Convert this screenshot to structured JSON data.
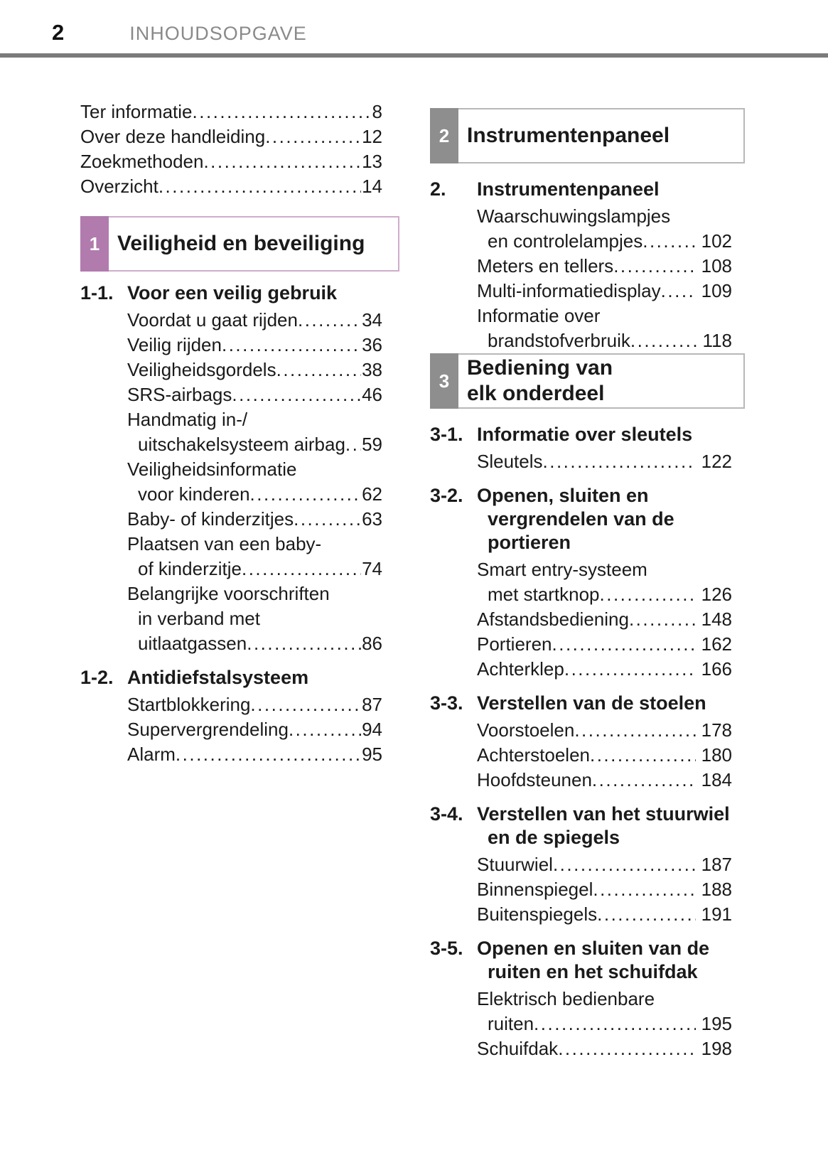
{
  "header": {
    "page_number": "2",
    "title": "INHOUDSOPGAVE"
  },
  "colors": {
    "chapter1_accent": "#b17bad",
    "chapter1_border": "#cfadcb",
    "chapter_gray_accent": "#8e8e8e",
    "chapter_gray_border": "#b8b8b8",
    "header_text_gray": "#8a8a8a",
    "divider_gray": "#7b7b7b"
  },
  "left_column": {
    "blocks": [
      {
        "type": "list",
        "items": [
          {
            "lines": [
              "Ter informatie"
            ],
            "page": "8"
          },
          {
            "lines": [
              "Over deze handleiding"
            ],
            "page": "12"
          },
          {
            "lines": [
              "Zoekmethoden"
            ],
            "page": "13"
          },
          {
            "lines": [
              "Overzicht"
            ],
            "page": "14"
          }
        ]
      },
      {
        "type": "chapter",
        "number": "1",
        "title_lines": [
          "Veiligheid en beveiliging"
        ],
        "color": "#b17bad",
        "border": "#cfadcb"
      },
      {
        "type": "section",
        "number": "1-1.",
        "title_lines": [
          "Voor een veilig gebruik"
        ],
        "items": [
          {
            "lines": [
              "Voordat u gaat rijden"
            ],
            "page": "34"
          },
          {
            "lines": [
              "Veilig rijden"
            ],
            "page": "36"
          },
          {
            "lines": [
              "Veiligheidsgordels"
            ],
            "page": "38"
          },
          {
            "lines": [
              "SRS-airbags"
            ],
            "page": "46"
          },
          {
            "lines": [
              "Handmatig in-/",
              "uitschakelsysteem airbag"
            ],
            "page": "59"
          },
          {
            "lines": [
              "Veiligheidsinformatie",
              "voor kinderen"
            ],
            "page": "62"
          },
          {
            "lines": [
              "Baby- of kinderzitjes"
            ],
            "page": "63"
          },
          {
            "lines": [
              "Plaatsen van een baby-",
              "of kinderzitje"
            ],
            "page": "74"
          },
          {
            "lines": [
              "Belangrijke voorschriften",
              "in verband met",
              "uitlaatgassen"
            ],
            "page": "86"
          }
        ]
      },
      {
        "type": "section",
        "number": "1-2.",
        "title_lines": [
          "Antidiefstalsysteem"
        ],
        "items": [
          {
            "lines": [
              "Startblokkering"
            ],
            "page": "87"
          },
          {
            "lines": [
              "Supervergrendeling"
            ],
            "page": "94"
          },
          {
            "lines": [
              "Alarm"
            ],
            "page": "95"
          }
        ]
      }
    ]
  },
  "right_column": {
    "blocks": [
      {
        "type": "chapter",
        "number": "2",
        "title_lines": [
          "Instrumentenpaneel"
        ],
        "color": "#8e8e8e",
        "border": "#b8b8b8"
      },
      {
        "type": "section",
        "number": "2.",
        "title_lines": [
          "Instrumentenpaneel"
        ],
        "items": [
          {
            "lines": [
              "Waarschuwingslampjes",
              "en controlelampjes"
            ],
            "page": "102"
          },
          {
            "lines": [
              "Meters en tellers"
            ],
            "page": "108"
          },
          {
            "lines": [
              "Multi-informatiedisplay"
            ],
            "page": "109"
          },
          {
            "lines": [
              "Informatie over",
              "brandstofverbruik"
            ],
            "page": "118"
          }
        ]
      },
      {
        "type": "chapter",
        "number": "3",
        "title_lines": [
          "Bediening van",
          "elk onderdeel"
        ],
        "color": "#8e8e8e",
        "border": "#b8b8b8"
      },
      {
        "type": "section",
        "number": "3-1.",
        "title_lines": [
          "Informatie over sleutels"
        ],
        "items": [
          {
            "lines": [
              "Sleutels"
            ],
            "page": "122"
          }
        ]
      },
      {
        "type": "section",
        "number": "3-2.",
        "title_lines": [
          "Openen, sluiten en",
          "vergrendelen van de",
          "portieren"
        ],
        "items": [
          {
            "lines": [
              "Smart entry-systeem",
              "met startknop"
            ],
            "page": "126"
          },
          {
            "lines": [
              "Afstandsbediening"
            ],
            "page": "148"
          },
          {
            "lines": [
              "Portieren"
            ],
            "page": "162"
          },
          {
            "lines": [
              "Achterklep"
            ],
            "page": "166"
          }
        ]
      },
      {
        "type": "section",
        "number": "3-3.",
        "title_lines": [
          "Verstellen van de stoelen"
        ],
        "items": [
          {
            "lines": [
              "Voorstoelen"
            ],
            "page": "178"
          },
          {
            "lines": [
              "Achterstoelen"
            ],
            "page": "180"
          },
          {
            "lines": [
              "Hoofdsteunen"
            ],
            "page": "184"
          }
        ]
      },
      {
        "type": "section",
        "number": "3-4.",
        "title_lines": [
          "Verstellen van het stuurwiel",
          "en de spiegels"
        ],
        "items": [
          {
            "lines": [
              "Stuurwiel"
            ],
            "page": "187"
          },
          {
            "lines": [
              "Binnenspiegel"
            ],
            "page": "188"
          },
          {
            "lines": [
              "Buitenspiegels"
            ],
            "page": "191"
          }
        ]
      },
      {
        "type": "section",
        "number": "3-5.",
        "title_lines": [
          "Openen en sluiten van de",
          "ruiten en het schuifdak"
        ],
        "items": [
          {
            "lines": [
              "Elektrisch bedienbare",
              "ruiten"
            ],
            "page": "195"
          },
          {
            "lines": [
              "Schuifdak"
            ],
            "page": "198"
          }
        ]
      }
    ]
  }
}
